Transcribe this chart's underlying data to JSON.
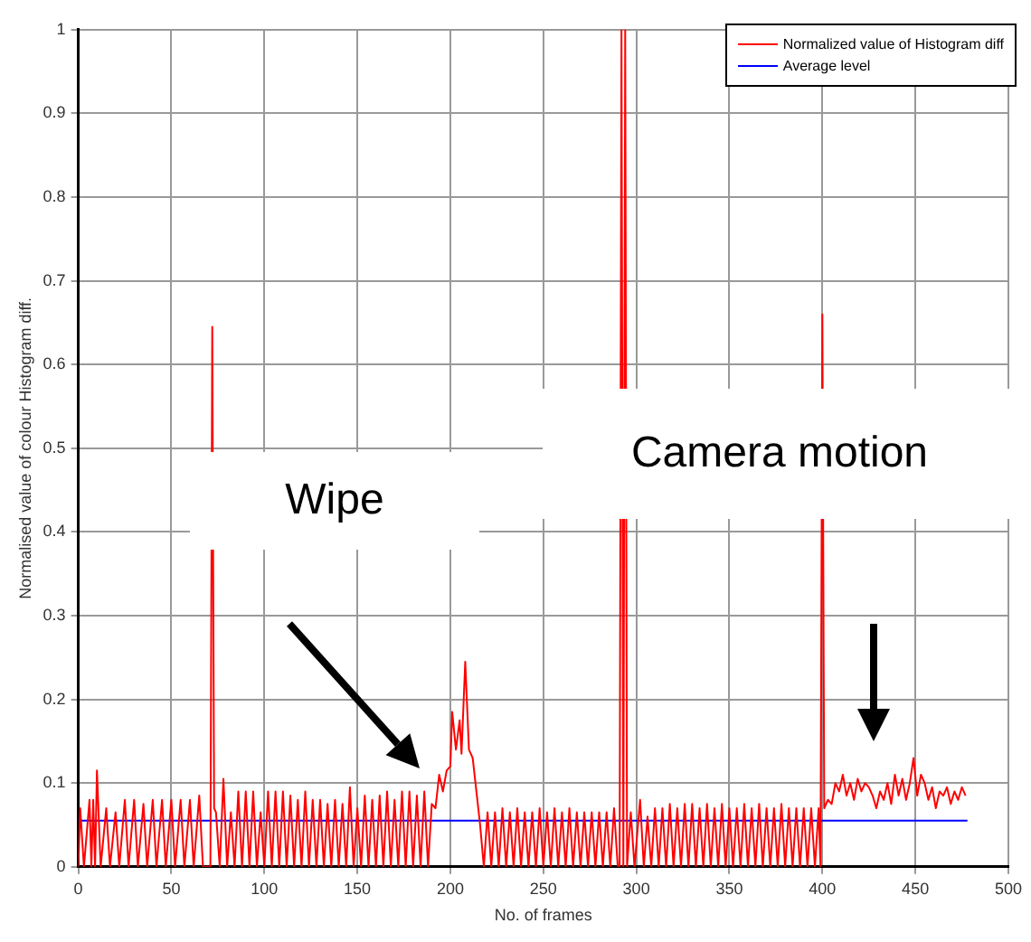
{
  "chart_data": {
    "type": "line",
    "xlabel": "No. of frames",
    "ylabel": "Normalised value of colour Histogram diff.",
    "xlim": [
      0,
      500
    ],
    "xticks": [
      0,
      50,
      100,
      150,
      200,
      250,
      300,
      350,
      400,
      450,
      500
    ],
    "ylim": [
      0,
      1
    ],
    "yticks": [
      0,
      0.1,
      0.2,
      0.3,
      0.4,
      0.5,
      0.6,
      0.7,
      0.8,
      0.9,
      1
    ],
    "grid": true,
    "legend": "top right",
    "marker": "none",
    "line_style": "solid",
    "annotations": [
      "Wipe",
      "Camera motion"
    ],
    "series": [
      {
        "name": "Normalized value of Histogram diff",
        "color": "#ff0000",
        "x": [
          0,
          1,
          3,
          6,
          7,
          8,
          9,
          10,
          12,
          15,
          17,
          20,
          22,
          25,
          27,
          30,
          32,
          35,
          37,
          40,
          42,
          45,
          47,
          50,
          52,
          55,
          57,
          60,
          62,
          65,
          67,
          70,
          71,
          72,
          73,
          74,
          76,
          78,
          80,
          82,
          84,
          86,
          88,
          90,
          92,
          94,
          96,
          98,
          100,
          102,
          104,
          106,
          108,
          110,
          112,
          114,
          116,
          118,
          120,
          122,
          124,
          126,
          128,
          130,
          132,
          134,
          136,
          138,
          140,
          142,
          144,
          146,
          148,
          150,
          152,
          154,
          156,
          158,
          160,
          162,
          164,
          166,
          168,
          170,
          172,
          174,
          176,
          178,
          180,
          182,
          184,
          186,
          188,
          190,
          192,
          194,
          196,
          198,
          200,
          201,
          203,
          205,
          206,
          208,
          210,
          212,
          214,
          216,
          218,
          220,
          222,
          224,
          226,
          228,
          230,
          232,
          234,
          236,
          238,
          240,
          242,
          244,
          246,
          248,
          250,
          252,
          254,
          256,
          258,
          260,
          262,
          264,
          266,
          268,
          270,
          272,
          274,
          276,
          278,
          280,
          282,
          284,
          286,
          288,
          290,
          291,
          292,
          293,
          294,
          295,
          297,
          299,
          302,
          304,
          306,
          308,
          310,
          312,
          314,
          316,
          318,
          320,
          322,
          324,
          326,
          328,
          330,
          332,
          334,
          336,
          338,
          340,
          342,
          344,
          346,
          348,
          350,
          352,
          354,
          356,
          358,
          360,
          362,
          364,
          366,
          368,
          370,
          372,
          374,
          376,
          378,
          380,
          382,
          384,
          386,
          388,
          390,
          392,
          394,
          396,
          398,
          399,
          400,
          401,
          403,
          405,
          407,
          409,
          411,
          413,
          415,
          417,
          419,
          421,
          423,
          425,
          427,
          429,
          431,
          433,
          435,
          437,
          439,
          441,
          443,
          445,
          447,
          449,
          451,
          453,
          455,
          457,
          459,
          461,
          463,
          465,
          467,
          469,
          471,
          473,
          475,
          477
        ],
        "values": [
          0,
          0.07,
          0,
          0.08,
          0,
          0.08,
          0,
          0.115,
          0,
          0.07,
          0,
          0.065,
          0,
          0.08,
          0,
          0.08,
          0,
          0.075,
          0,
          0.08,
          0,
          0.08,
          0,
          0.08,
          0,
          0.08,
          0,
          0.08,
          0,
          0.085,
          0,
          0,
          0,
          0.645,
          0.07,
          0.065,
          0,
          0.105,
          0,
          0.065,
          0,
          0.09,
          0,
          0.09,
          0,
          0.09,
          0,
          0.065,
          0,
          0.09,
          0,
          0.09,
          0,
          0.09,
          0,
          0.085,
          0,
          0.08,
          0,
          0.09,
          0,
          0.08,
          0,
          0.08,
          0,
          0.075,
          0,
          0.08,
          0,
          0.075,
          0,
          0.095,
          0,
          0.07,
          0,
          0.085,
          0,
          0.08,
          0,
          0.085,
          0,
          0.09,
          0,
          0.08,
          0,
          0.09,
          0,
          0.09,
          0,
          0.085,
          0,
          0.09,
          0,
          0.075,
          0.07,
          0.11,
          0.09,
          0.115,
          0.12,
          0.185,
          0.14,
          0.175,
          0.135,
          0.245,
          0.14,
          0.13,
          0.09,
          0.05,
          0,
          0.065,
          0,
          0.065,
          0,
          0.07,
          0,
          0.065,
          0,
          0.07,
          0,
          0.065,
          0,
          0.065,
          0,
          0.07,
          0,
          0.065,
          0,
          0.07,
          0,
          0.065,
          0,
          0.07,
          0,
          0.065,
          0,
          0.065,
          0,
          0.065,
          0,
          0.065,
          0,
          0.065,
          0,
          0.07,
          0,
          0,
          1,
          0,
          1,
          0,
          0.065,
          0,
          0.08,
          0,
          0.06,
          0,
          0.07,
          0,
          0.07,
          0,
          0.075,
          0,
          0.07,
          0,
          0.075,
          0,
          0.075,
          0,
          0.07,
          0,
          0.075,
          0,
          0.07,
          0,
          0.075,
          0,
          0.07,
          0,
          0.07,
          0,
          0.075,
          0,
          0.07,
          0,
          0.075,
          0,
          0.07,
          0,
          0.07,
          0,
          0.075,
          0,
          0.07,
          0,
          0.07,
          0,
          0.07,
          0,
          0.07,
          0,
          0.07,
          0,
          0.66,
          0.07,
          0.08,
          0.075,
          0.1,
          0.09,
          0.11,
          0.085,
          0.1,
          0.08,
          0.105,
          0.09,
          0.1,
          0.095,
          0.085,
          0.07,
          0.09,
          0.08,
          0.1,
          0.075,
          0.11,
          0.085,
          0.105,
          0.08,
          0.1,
          0.13,
          0.085,
          0.11,
          0.1,
          0.08,
          0.095,
          0.07,
          0.09,
          0.085,
          0.095,
          0.075,
          0.09,
          0.08,
          0.095,
          0.085
        ]
      },
      {
        "name": "Average level",
        "color": "#0000ff",
        "x": [
          0,
          478
        ],
        "values": [
          0.055,
          0.055
        ]
      }
    ]
  }
}
